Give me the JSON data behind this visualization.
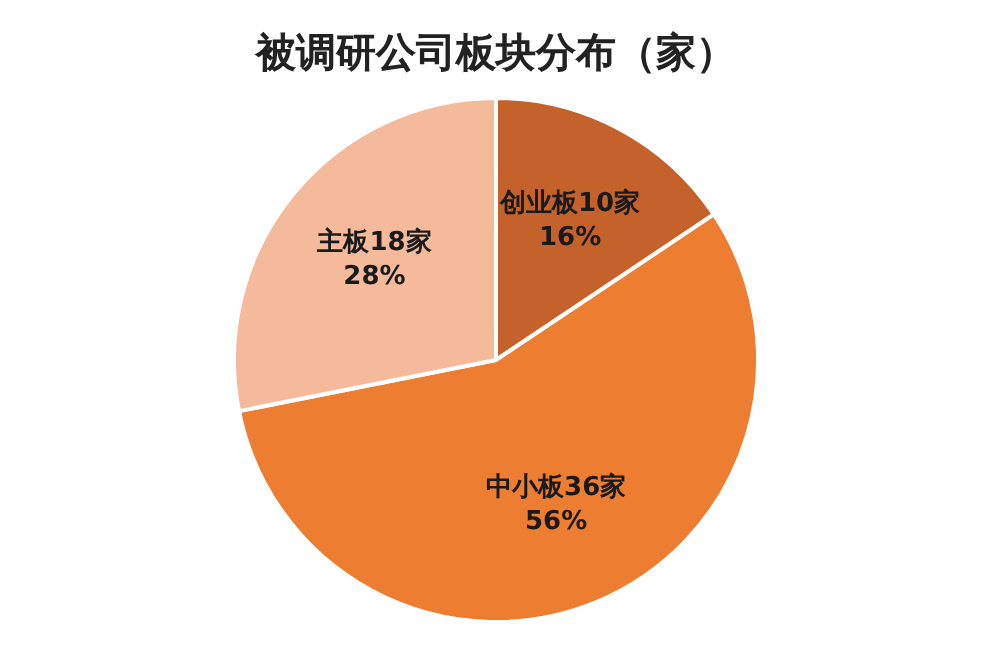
{
  "chart_data": {
    "type": "pie",
    "title": "被调研公司板块分布（家）",
    "categories": [
      "创业板",
      "中小板",
      "主板"
    ],
    "values": [
      10,
      36,
      18
    ],
    "value_labels": [
      "10家\n16%",
      "36家\n56%",
      "18家\n28%"
    ],
    "colors": [
      "#c5622b",
      "#ed7d31",
      "#f5b99c"
    ],
    "legend": false
  }
}
